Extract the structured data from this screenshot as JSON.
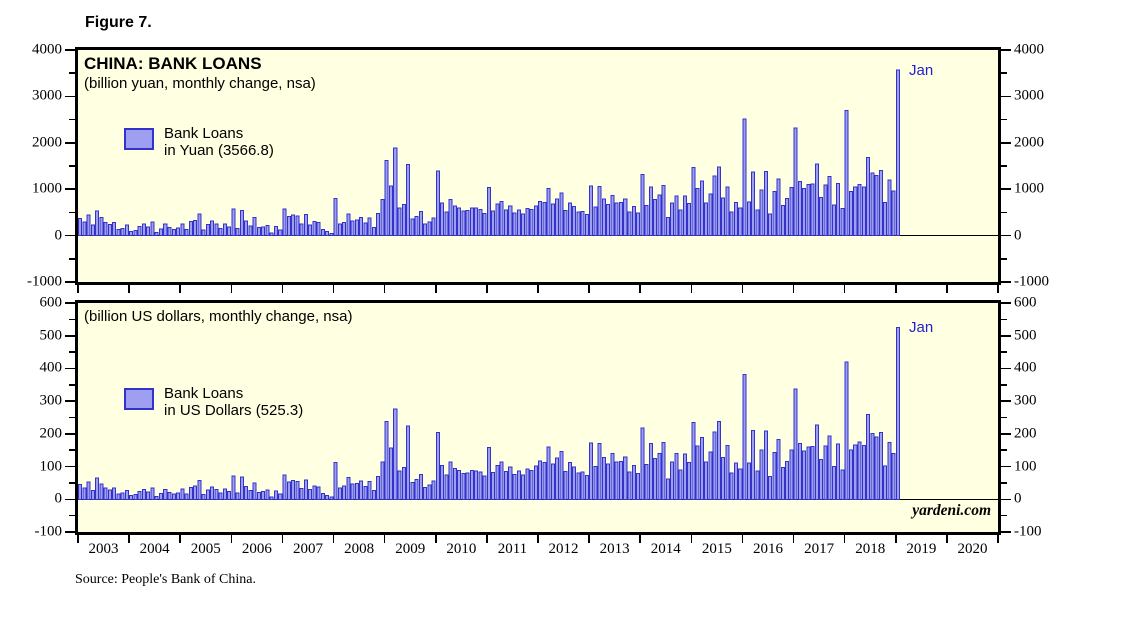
{
  "figure_label": "Figure 7.",
  "watermark": "yardeni.com",
  "source": "Source: People's Bank of China.",
  "colors": {
    "bar_fill": "#9f9ff2",
    "bar_stroke": "#3333cc",
    "plot_background": "#ffffe1",
    "frame": "#000000",
    "annotation_blue": "#2222cc"
  },
  "x_axis": {
    "start": "2003-01",
    "end": "2019-01",
    "frequency": "monthly",
    "axis_span_years": 18,
    "years": [
      "2003",
      "2004",
      "2005",
      "2006",
      "2007",
      "2008",
      "2009",
      "2010",
      "2011",
      "2012",
      "2013",
      "2014",
      "2015",
      "2016",
      "2017",
      "2018",
      "2019",
      "2020"
    ]
  },
  "chart_data": [
    {
      "type": "bar",
      "title": "CHINA: BANK LOANS",
      "subtitle": "(billion yuan, monthly change, nsa)",
      "legend": {
        "line1": "Bank Loans",
        "line2": "in Yuan (3566.8)"
      },
      "last_point_label": "Jan",
      "latest_value": 3566.8,
      "ylim": [
        -1000,
        4000
      ],
      "ytick_step": 1000,
      "minor_step": 500,
      "grid": false,
      "values": [
        370,
        290,
        440,
        225,
        535,
        390,
        280,
        235,
        280,
        130,
        155,
        225,
        90,
        115,
        200,
        250,
        190,
        290,
        65,
        145,
        250,
        175,
        130,
        160,
        255,
        130,
        305,
        330,
        470,
        120,
        235,
        310,
        245,
        150,
        250,
        190,
        570,
        150,
        540,
        315,
        210,
        395,
        170,
        190,
        220,
        60,
        195,
        125,
        575,
        415,
        445,
        425,
        250,
        455,
        230,
        305,
        285,
        135,
        90,
        50,
        805,
        245,
        285,
        465,
        320,
        335,
        385,
        270,
        375,
        180,
        480,
        775,
        1620,
        1070,
        1890,
        590,
        665,
        1530,
        355,
        410,
        515,
        250,
        295,
        380,
        1390,
        700,
        510,
        775,
        640,
        600,
        535,
        545,
        595,
        590,
        565,
        480,
        1040,
        535,
        680,
        740,
        550,
        635,
        490,
        550,
        470,
        585,
        560,
        640,
        738,
        711,
        1010,
        682,
        793,
        920,
        540,
        704,
        623,
        505,
        523,
        455,
        1070,
        620,
        1060,
        793,
        667,
        861,
        700,
        711,
        787,
        506,
        625,
        483,
        1320,
        645,
        1050,
        775,
        871,
        1080,
        385,
        703,
        857,
        548,
        853,
        697,
        1470,
        1020,
        1180,
        708,
        901,
        1280,
        1480,
        810,
        1050,
        514,
        709,
        598,
        2510,
        727,
        1370,
        556,
        985,
        1380,
        464,
        949,
        1220,
        651,
        795,
        1040,
        2320,
        1170,
        1020,
        1100,
        1110,
        1540,
        825,
        1090,
        1270,
        663,
        1120,
        584,
        2700,
        950,
        1050,
        1100,
        1050,
        1680,
        1350,
        1300,
        1400,
        710,
        1200,
        960,
        3566.8
      ]
    },
    {
      "type": "bar",
      "subtitle": "(billion US dollars, monthly change, nsa)",
      "legend": {
        "line1": "Bank Loans",
        "line2": "in US Dollars (525.3)"
      },
      "last_point_label": "Jan",
      "latest_value": 525.3,
      "ylim": [
        -100,
        600
      ],
      "ytick_step": 100,
      "minor_step": 50,
      "grid": false,
      "values": [
        44.7,
        35.0,
        53.1,
        27.2,
        64.6,
        47.1,
        33.8,
        28.4,
        33.8,
        15.7,
        18.7,
        27.2,
        10.9,
        13.9,
        24.2,
        30.2,
        22.9,
        35.0,
        7.9,
        17.5,
        30.2,
        21.1,
        15.7,
        19.3,
        30.8,
        15.7,
        36.8,
        39.9,
        56.8,
        14.5,
        29.0,
        38.3,
        30.2,
        18.5,
        30.9,
        23.5,
        71.5,
        18.8,
        67.8,
        39.6,
        26.4,
        49.8,
        21.5,
        24.0,
        27.8,
        7.6,
        24.7,
        16.0,
        73.9,
        53.5,
        57.6,
        55.1,
        32.7,
        59.7,
        30.4,
        40.3,
        38.0,
        18.1,
        12.2,
        6.8,
        112.0,
        34.2,
        40.3,
        66.4,
        46.1,
        48.6,
        56.4,
        39.5,
        55.0,
        26.4,
        70.3,
        113.3,
        237.2,
        156.7,
        276.7,
        86.4,
        97.4,
        224.0,
        52.0,
        60.0,
        75.4,
        36.6,
        43.2,
        55.6,
        204.4,
        102.9,
        75.0,
        114.0,
        94.1,
        88.2,
        78.7,
        80.1,
        87.5,
        86.8,
        83.1,
        70.6,
        157.8,
        81.3,
        103.7,
        113.3,
        84.6,
        98.1,
        76.1,
        85.9,
        73.6,
        92.0,
        88.2,
        101.3,
        117.1,
        112.9,
        160.3,
        108.3,
        125.9,
        146.0,
        85.7,
        111.7,
        98.9,
        80.2,
        83.0,
        72.2,
        172.0,
        99.7,
        170.7,
        128.1,
        108.5,
        140.5,
        114.2,
        116.2,
        128.6,
        83.0,
        102.6,
        79.6,
        217.8,
        105.9,
        171.0,
        125.0,
        139.8,
        173.4,
        62.2,
        114.3,
        139.6,
        89.5,
        139.2,
        112.6,
        235.2,
        162.7,
        189.1,
        114.2,
        145.3,
        206.1,
        238.3,
        127.8,
        165.1,
        80.9,
        111.0,
        92.7,
        381.5,
        111.0,
        210.4,
        85.8,
        150.8,
        209.4,
        69.5,
        142.7,
        182.9,
        96.6,
        116.2,
        150.1,
        337.2,
        170.3,
        148.0,
        159.7,
        161.8,
        226.5,
        121.9,
        163.4,
        193.3,
        100.0,
        169.2,
        88.9,
        419.9,
        150.3,
        166.1,
        174.6,
        164.8,
        259.7,
        200.9,
        190.3,
        204.1,
        102.5,
        172.9,
        139.5,
        525.3
      ]
    }
  ]
}
